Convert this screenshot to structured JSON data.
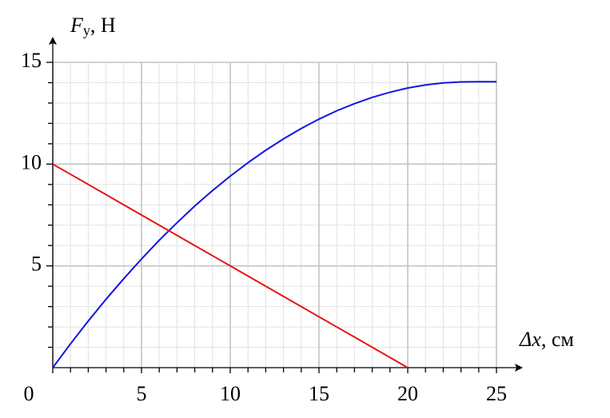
{
  "chart_data": {
    "type": "line",
    "ylabel_symbol": "F",
    "ylabel_subscript": "у",
    "ylabel_unit": ", Н",
    "xlabel_symbol": "Δx",
    "xlabel_unit": ", см",
    "x": [
      0,
      1,
      2,
      3,
      4,
      5,
      6,
      7,
      8,
      9,
      10,
      11,
      12,
      13,
      14,
      15,
      16,
      17,
      18,
      19,
      20,
      21,
      22,
      23,
      24,
      25
    ],
    "series": [
      {
        "name": "blue",
        "color": "#1414e0",
        "values": [
          0,
          1.17,
          2.29,
          3.36,
          4.37,
          5.34,
          6.26,
          7.12,
          7.94,
          8.7,
          9.41,
          10.07,
          10.68,
          11.24,
          11.75,
          12.21,
          12.62,
          12.97,
          13.28,
          13.53,
          13.74,
          13.89,
          13.99,
          14.04,
          14.05,
          14.05
        ]
      },
      {
        "name": "red",
        "color": "#e81414",
        "values": [
          10,
          9.5,
          9,
          8.5,
          8,
          7.5,
          7,
          6.5,
          6,
          5.5,
          5,
          4.5,
          4,
          3.5,
          3,
          2.5,
          2,
          1.5,
          1,
          0.5,
          0,
          null,
          null,
          null,
          null,
          null
        ]
      }
    ],
    "xlim": [
      0,
      25
    ],
    "ylim": [
      0,
      15
    ],
    "xticks": [
      0,
      5,
      10,
      15,
      20,
      25
    ],
    "yticks": [
      5,
      10,
      15
    ],
    "grid": true,
    "minor_grid": true
  }
}
